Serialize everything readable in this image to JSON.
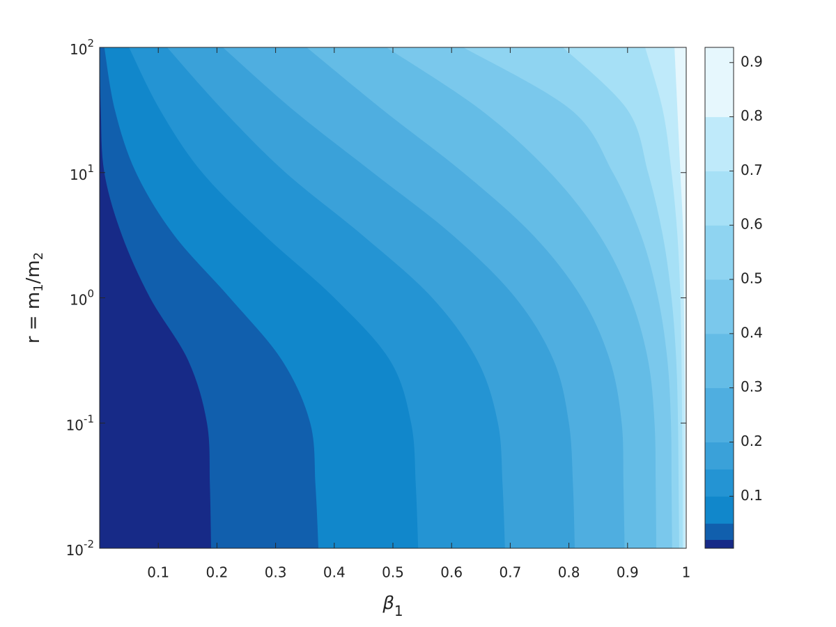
{
  "chart_data": {
    "type": "contourf",
    "xlabel": {
      "text": "β",
      "sub": "1"
    },
    "ylabel": [
      "r = m",
      "1",
      "/m",
      "2"
    ],
    "xlim": [
      0,
      1
    ],
    "xticks": [
      0.1,
      0.2,
      0.3,
      0.4,
      0.5,
      0.6,
      0.7,
      0.8,
      0.9,
      1
    ],
    "ylim": [
      0.01,
      100
    ],
    "log_y": true,
    "yticks": [
      {
        "value": 0.01,
        "label": "10",
        "exponent": "-2"
      },
      {
        "value": 0.1,
        "label": "10",
        "exponent": "-1"
      },
      {
        "value": 1,
        "label": "10",
        "exponent": "0"
      },
      {
        "value": 10,
        "label": "10",
        "exponent": "1"
      },
      {
        "value": 100,
        "label": "10",
        "exponent": "2"
      }
    ],
    "y": [
      0.01,
      0.03162,
      0.1,
      0.3162,
      1,
      3.162,
      10,
      31.62,
      100
    ],
    "boundaries": [
      {
        "values": [
          0.19,
          0.188,
          0.183,
          0.151,
          0.086,
          0.038,
          0.008,
          0.002,
          0.0
        ]
      },
      {
        "values": [
          0.373,
          0.368,
          0.359,
          0.311,
          0.222,
          0.127,
          0.062,
          0.026,
          0.008
        ]
      },
      {
        "values": [
          0.543,
          0.539,
          0.531,
          0.495,
          0.4,
          0.281,
          0.175,
          0.103,
          0.05
        ]
      },
      {
        "values": [
          0.691,
          0.687,
          0.679,
          0.644,
          0.567,
          0.448,
          0.317,
          0.21,
          0.115
        ]
      },
      {
        "values": [
          0.81,
          0.807,
          0.8,
          0.774,
          0.709,
          0.602,
          0.466,
          0.33,
          0.21
        ]
      },
      {
        "values": [
          0.895,
          0.893,
          0.89,
          0.87,
          0.822,
          0.739,
          0.62,
          0.483,
          0.353
        ]
      },
      {
        "values": [
          0.949,
          0.948,
          0.946,
          0.935,
          0.905,
          0.852,
          0.768,
          0.65,
          0.489
        ]
      },
      {
        "values": [
          0.976,
          0.975,
          0.974,
          0.968,
          0.952,
          0.923,
          0.875,
          0.804,
          0.62
        ]
      },
      {
        "values": [
          0.988,
          0.987,
          0.986,
          0.983,
          0.975,
          0.96,
          0.935,
          0.9,
          0.79
        ]
      },
      {
        "values": [
          0.994,
          0.994,
          0.993,
          0.992,
          0.99,
          0.985,
          0.975,
          0.96,
          0.93
        ]
      },
      {
        "values": [
          0.998,
          0.998,
          0.998,
          0.997,
          0.996,
          0.995,
          0.99,
          0.985,
          0.98
        ]
      }
    ],
    "colors": [
      "#172a87",
      "#115fad",
      "#1187cb",
      "#2494d3",
      "#3aa1d9",
      "#4faee0",
      "#64bce6",
      "#7ac8ec",
      "#8fd4f1",
      "#a6e0f6",
      "#bfeafa",
      "#e6f7fd"
    ],
    "colorbar_edges": [
      0.004,
      0.02,
      0.05,
      0.1,
      0.15,
      0.2,
      0.3,
      0.4,
      0.5,
      0.6,
      0.7,
      0.8,
      0.928
    ],
    "colorbar_lim": [
      0.004,
      0.928
    ],
    "colorbar_ticks": [
      0.1,
      0.2,
      0.3,
      0.4,
      0.5,
      0.6,
      0.7,
      0.8,
      0.9
    ]
  }
}
